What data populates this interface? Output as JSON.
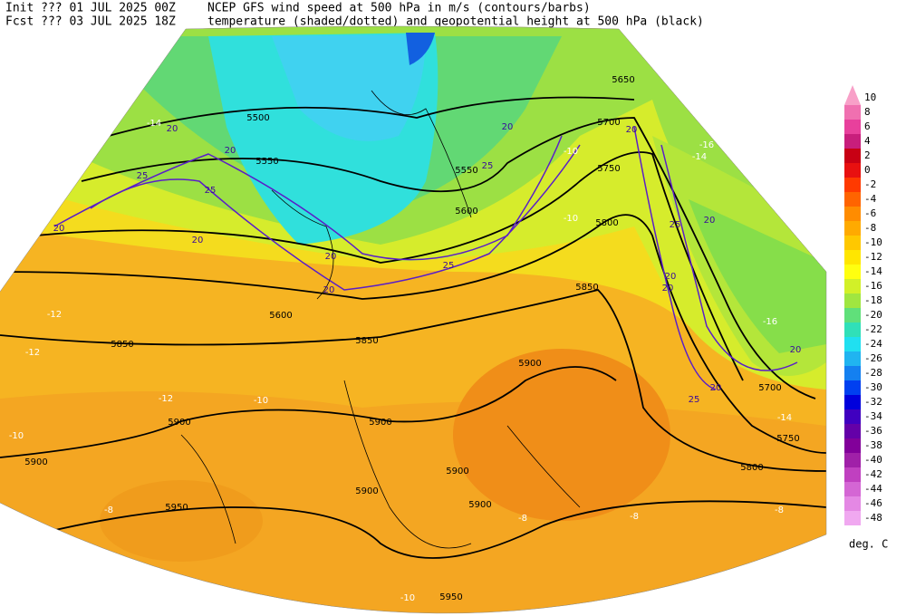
{
  "header": {
    "init": "Init  ??? 01 JUL 2025 00Z",
    "fcst": "Fcst ??? 03 JUL 2025 18Z",
    "title_line1": "NCEP GFS wind speed at 500 hPa in m/s (contours/barbs)",
    "title_line2": "temperature (shaded/dotted) and geopotential height at 500 hPa (black)"
  },
  "map": {
    "height_labels": [
      5500,
      5550,
      5600,
      5650,
      5700,
      5750,
      5800,
      5850,
      5850,
      5900,
      5900,
      5900,
      5900,
      5900,
      5900,
      5950,
      5900,
      5850,
      5700,
      5750,
      5800,
      5600,
      5550,
      5950
    ],
    "temperature_labels": [
      -14,
      -12,
      -12,
      -12,
      -10,
      -10,
      -8,
      -8,
      -8,
      -8,
      -10,
      -10,
      -16,
      -16,
      -14,
      -14,
      -8,
      -10
    ],
    "wind_labels": [
      20,
      25,
      20,
      25,
      20,
      20,
      20,
      20,
      25,
      20,
      20,
      25,
      20,
      20,
      25,
      20,
      20,
      20,
      25
    ]
  },
  "colorbar": {
    "levels": [
      10,
      8,
      6,
      4,
      2,
      0,
      -2,
      -4,
      -6,
      -8,
      -10,
      -12,
      -14,
      -16,
      -18,
      -20,
      -22,
      -24,
      -26,
      -28,
      -30,
      -32,
      -34,
      -36,
      -38,
      -40,
      -42,
      -44,
      -46,
      -48
    ],
    "colors": [
      "#f8a0c8",
      "#f070b0",
      "#e8409c",
      "#c81e7c",
      "#c80014",
      "#e81010",
      "#ff3a00",
      "#ff6400",
      "#ff8c00",
      "#ffaa00",
      "#ffc800",
      "#ffe600",
      "#ffff10",
      "#d2f028",
      "#a0e640",
      "#60e07a",
      "#30e0b8",
      "#20e0f0",
      "#20b4f0",
      "#1480f0",
      "#0040f0",
      "#0000dc",
      "#4000c0",
      "#6400a8",
      "#82009a",
      "#a020a8",
      "#c040c0",
      "#d466d4",
      "#e488e4",
      "#f0a8f0"
    ],
    "unit": "deg. C"
  }
}
